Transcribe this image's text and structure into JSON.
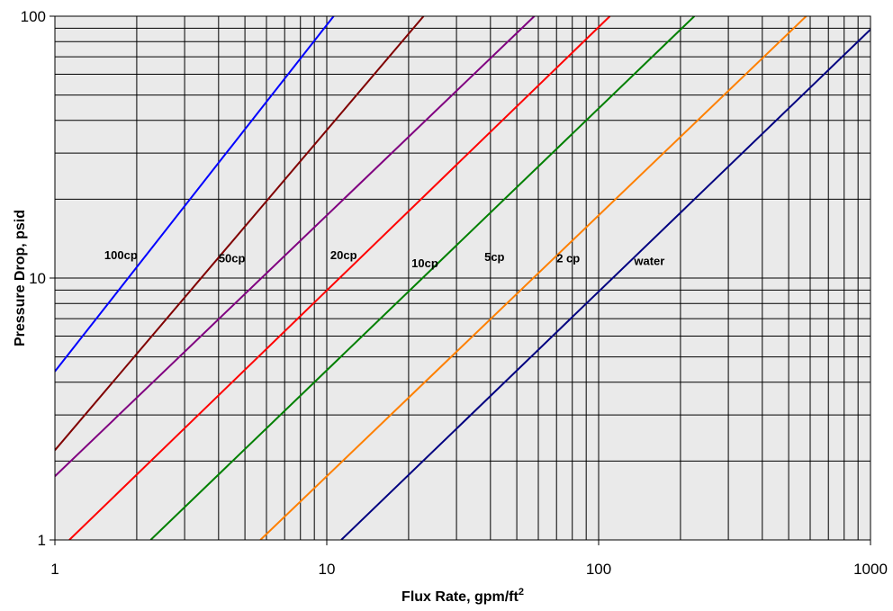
{
  "chart_data": {
    "type": "line",
    "title": "",
    "xlabel": "Flux Rate, gpm/ft",
    "xlabel_superscript": "2",
    "ylabel": "Pressure Drop, psid",
    "xscale": "log",
    "yscale": "log",
    "xlim": [
      1,
      1000
    ],
    "ylim": [
      1,
      100
    ],
    "x_tick_labels": [
      "1",
      "10",
      "100",
      "1000"
    ],
    "y_tick_labels": [
      "1",
      "10",
      "100"
    ],
    "grid": true,
    "plot_background": "#eaeaea",
    "legend": "none",
    "series": [
      {
        "label": "100cp",
        "color": "#0000ff",
        "points": [
          [
            1,
            4.4
          ],
          [
            10.6,
            100
          ]
        ]
      },
      {
        "label": "50cp",
        "color": "#800000",
        "points": [
          [
            1,
            2.2
          ],
          [
            22.7,
            100
          ]
        ]
      },
      {
        "label": "20cp",
        "color": "#800080",
        "points": [
          [
            1,
            1.75
          ],
          [
            58,
            100
          ]
        ]
      },
      {
        "label": "10cp",
        "color": "#ff0000",
        "points": [
          [
            1.13,
            1
          ],
          [
            110,
            100
          ]
        ]
      },
      {
        "label": "5cp",
        "color": "#008000",
        "points": [
          [
            2.25,
            1
          ],
          [
            225,
            100
          ]
        ]
      },
      {
        "label": "2 cp",
        "color": "#ff8000",
        "points": [
          [
            5.7,
            1
          ],
          [
            580,
            100
          ]
        ]
      },
      {
        "label": "water",
        "color": "#000080",
        "points": [
          [
            11.3,
            1
          ],
          [
            1000,
            89
          ]
        ]
      }
    ],
    "annotations": [
      {
        "text": "100cp",
        "x": 1.52,
        "y": 11.8
      },
      {
        "text": "50cp",
        "x": 4.0,
        "y": 11.5
      },
      {
        "text": "20cp",
        "x": 10.3,
        "y": 11.8
      },
      {
        "text": "10cp",
        "x": 20.5,
        "y": 11.0
      },
      {
        "text": "5cp",
        "x": 38.0,
        "y": 11.6
      },
      {
        "text": "2 cp",
        "x": 70.0,
        "y": 11.5
      },
      {
        "text": "water",
        "x": 135,
        "y": 11.2
      }
    ]
  }
}
